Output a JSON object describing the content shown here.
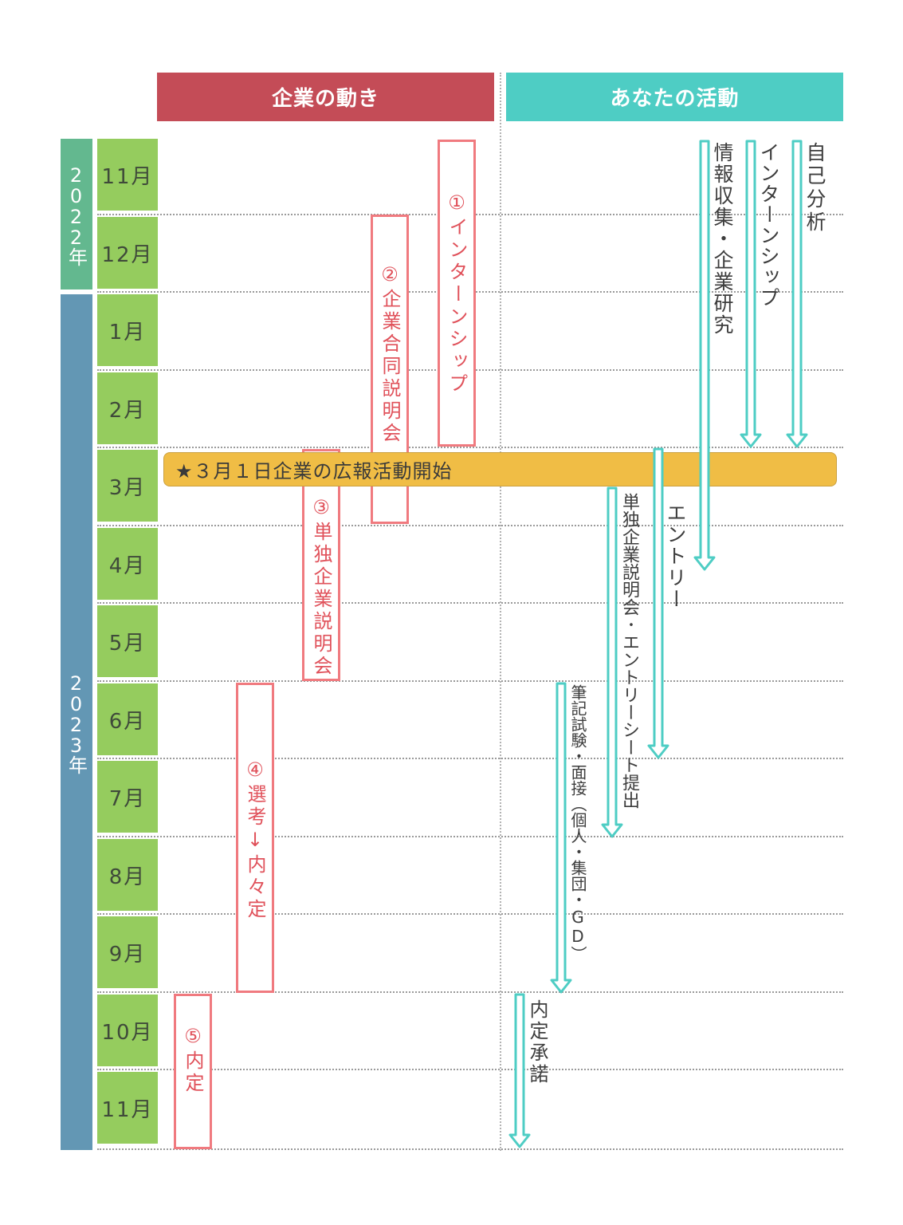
{
  "headers": {
    "company": "企業の動き",
    "you": "あなたの活動"
  },
  "years": {
    "y2022": "2022年",
    "y2023": "2023年"
  },
  "months": [
    "11月",
    "12月",
    "1月",
    "2月",
    "3月",
    "4月",
    "5月",
    "6月",
    "7月",
    "8月",
    "9月",
    "10月",
    "11月"
  ],
  "company_steps": [
    "①インターンシップ",
    "②企業合同説明会",
    "③単独企業説明会",
    "④選考↓内々定",
    "⑤内定"
  ],
  "banner": "★３月１日企業の広報活動開始",
  "activities": [
    "自己分析",
    "インターンシップ",
    "情報収集・企業研究",
    "エントリー",
    "単独企業説明会･エントリーシート提出",
    "筆記試験・面接（個人・集団・GD）",
    "内定承諾"
  ],
  "colors": {
    "company": "#c44c57",
    "you": "#4ecdc4",
    "year2022": "#63b88f",
    "year2023": "#6397b4",
    "month": "#95cc5e",
    "box": "#f07a7f",
    "banner": "#f0bd45"
  }
}
